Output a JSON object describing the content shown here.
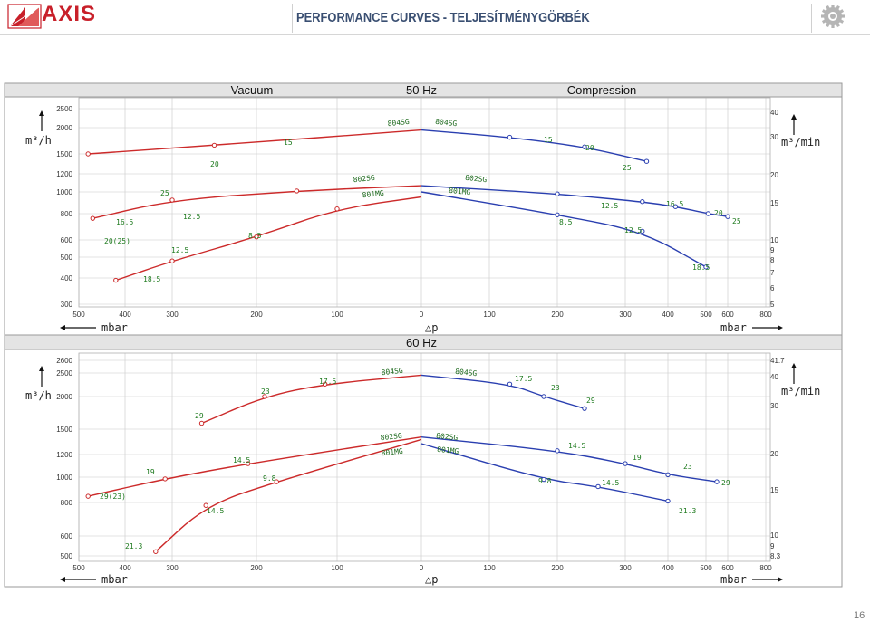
{
  "header": {
    "logo_text": "AXIS",
    "title": "PERFORMANCE CURVES - TELJESÍTMÉNYGÖRBÉK",
    "page_number": "16"
  },
  "colors": {
    "vacuum": "#cc2a2a",
    "compression": "#2a3fb0",
    "label_green": "#1e7a1e",
    "grid": "#c8c8c8",
    "axis_text": "#333333",
    "title_bar": "#e4e4e4"
  },
  "icons": {
    "logo": "axis-logo-icon",
    "gear": "gear-icon"
  },
  "chart_data": [
    {
      "type": "line",
      "title": "50 Hz",
      "left_title": "Vacuum",
      "right_title": "Compression",
      "xlabel": "△p",
      "x_unit": "mbar",
      "y_unit_left": "m³/h",
      "y_unit_right": "m³/min",
      "x_ticks_vacuum": [
        500,
        400,
        300,
        200,
        100,
        0
      ],
      "x_ticks_compression": [
        100,
        200,
        300,
        400,
        500,
        600,
        800
      ],
      "y_ticks_left": [
        300,
        400,
        500,
        600,
        800,
        1000,
        1200,
        1500,
        2000,
        2500
      ],
      "y_ticks_right": [
        "5",
        "6",
        "7",
        "8",
        "9",
        "10",
        "15",
        "20",
        "30",
        "40"
      ],
      "series": [
        {
          "name": "804SG",
          "side": "vacuum",
          "points": [
            [
              0,
              1950
            ],
            [
              250,
              1650
            ],
            [
              480,
              1500
            ]
          ]
        },
        {
          "name": "802SG",
          "side": "vacuum",
          "points": [
            [
              0,
              1065
            ],
            [
              150,
              1010
            ],
            [
              300,
              920
            ],
            [
              470,
              760
            ]
          ]
        },
        {
          "name": "801MG",
          "side": "vacuum",
          "points": [
            [
              0,
              950
            ],
            [
              100,
              840
            ],
            [
              200,
              620
            ],
            [
              300,
              480
            ],
            [
              420,
              390
            ]
          ]
        },
        {
          "name": "804SG",
          "side": "compression",
          "points": [
            [
              0,
              1950
            ],
            [
              130,
              1800
            ],
            [
              240,
              1620
            ],
            [
              350,
              1380
            ]
          ]
        },
        {
          "name": "802SG",
          "side": "compression",
          "points": [
            [
              0,
              1065
            ],
            [
              200,
              980
            ],
            [
              340,
              905
            ],
            [
              420,
              860
            ],
            [
              510,
              800
            ],
            [
              600,
              775
            ]
          ]
        },
        {
          "name": "801MG",
          "side": "compression",
          "points": [
            [
              0,
              1000
            ],
            [
              200,
              790
            ],
            [
              340,
              660
            ],
            [
              500,
              450
            ]
          ]
        }
      ],
      "annotations": [
        {
          "text": "804SG",
          "series": "804SG",
          "side": "vacuum"
        },
        {
          "text": "15",
          "series": "804SG",
          "side": "vacuum"
        },
        {
          "text": "20",
          "series": "804SG",
          "side": "vacuum"
        },
        {
          "text": "802SG",
          "series": "802SG",
          "side": "vacuum"
        },
        {
          "text": "12.5",
          "series": "802SG",
          "side": "vacuum"
        },
        {
          "text": "25",
          "series": "802SG",
          "side": "vacuum"
        },
        {
          "text": "16.5",
          "series": "802SG",
          "side": "vacuum"
        },
        {
          "text": "801MG",
          "series": "801MG",
          "side": "vacuum"
        },
        {
          "text": "8.5",
          "series": "801MG",
          "side": "vacuum"
        },
        {
          "text": "12.5",
          "series": "801MG",
          "side": "vacuum"
        },
        {
          "text": "20(25)",
          "series": "801MG",
          "side": "vacuum"
        },
        {
          "text": "18.5",
          "series": "801MG",
          "side": "vacuum"
        },
        {
          "text": "804SG",
          "series": "804SG",
          "side": "compression"
        },
        {
          "text": "15",
          "series": "804SG",
          "side": "compression"
        },
        {
          "text": "20",
          "series": "804SG",
          "side": "compression"
        },
        {
          "text": "25",
          "series": "804SG",
          "side": "compression"
        },
        {
          "text": "802SG",
          "series": "802SG",
          "side": "compression"
        },
        {
          "text": "12.5",
          "series": "802SG",
          "side": "compression"
        },
        {
          "text": "16.5",
          "series": "802SG",
          "side": "compression"
        },
        {
          "text": "20",
          "series": "802SG",
          "side": "compression"
        },
        {
          "text": "25",
          "series": "802SG",
          "side": "compression"
        },
        {
          "text": "801MG",
          "series": "801MG",
          "side": "compression"
        },
        {
          "text": "8.5",
          "series": "801MG",
          "side": "compression"
        },
        {
          "text": "12.5",
          "series": "801MG",
          "side": "compression"
        },
        {
          "text": "18.5",
          "series": "801MG",
          "side": "compression"
        }
      ]
    },
    {
      "type": "line",
      "title": "60 Hz",
      "xlabel": "△p",
      "x_unit": "mbar",
      "y_unit_left": "m³/h",
      "y_unit_right": "m³/min",
      "x_ticks_vacuum": [
        500,
        400,
        300,
        200,
        100,
        0
      ],
      "x_ticks_compression": [
        100,
        200,
        300,
        400,
        500,
        600,
        800
      ],
      "y_ticks_left": [
        500,
        600,
        800,
        1000,
        1200,
        1500,
        2000,
        2500,
        2600
      ],
      "y_ticks_right": [
        "8.3",
        "9",
        "10",
        "15",
        "20",
        "30",
        "40",
        "41.7"
      ],
      "series": [
        {
          "name": "804SG",
          "side": "vacuum",
          "points": [
            [
              0,
              2450
            ],
            [
              115,
              2250
            ],
            [
              190,
              2000
            ],
            [
              265,
              1580
            ]
          ]
        },
        {
          "name": "802SG",
          "side": "vacuum",
          "points": [
            [
              0,
              1400
            ],
            [
              210,
              1115
            ],
            [
              315,
              985
            ],
            [
              480,
              845
            ]
          ]
        },
        {
          "name": "801MG",
          "side": "vacuum",
          "points": [
            [
              0,
              1370
            ],
            [
              175,
              960
            ],
            [
              260,
              780
            ],
            [
              335,
              520
            ]
          ]
        },
        {
          "name": "804SG",
          "side": "compression",
          "points": [
            [
              0,
              2450
            ],
            [
              130,
              2250
            ],
            [
              180,
              2000
            ],
            [
              240,
              1800
            ]
          ]
        },
        {
          "name": "802SG",
          "side": "compression",
          "points": [
            [
              0,
              1400
            ],
            [
              200,
              1240
            ],
            [
              300,
              1115
            ],
            [
              400,
              1020
            ],
            [
              550,
              960
            ]
          ]
        },
        {
          "name": "801MG",
          "side": "compression",
          "points": [
            [
              0,
              1320
            ],
            [
              180,
              980
            ],
            [
              260,
              920
            ],
            [
              400,
              810
            ]
          ]
        }
      ],
      "annotations": [
        {
          "text": "804SG",
          "series": "804SG",
          "side": "vacuum"
        },
        {
          "text": "17.5",
          "series": "804SG",
          "side": "vacuum"
        },
        {
          "text": "23",
          "series": "804SG",
          "side": "vacuum"
        },
        {
          "text": "29",
          "series": "804SG",
          "side": "vacuum"
        },
        {
          "text": "802SG",
          "series": "802SG",
          "side": "vacuum"
        },
        {
          "text": "14.5",
          "series": "802SG",
          "side": "vacuum"
        },
        {
          "text": "19",
          "series": "802SG",
          "side": "vacuum"
        },
        {
          "text": "29(23)",
          "series": "802SG",
          "side": "vacuum"
        },
        {
          "text": "801MG",
          "series": "801MG",
          "side": "vacuum"
        },
        {
          "text": "9.8",
          "series": "801MG",
          "side": "vacuum"
        },
        {
          "text": "14.5",
          "series": "801MG",
          "side": "vacuum"
        },
        {
          "text": "21.3",
          "series": "801MG",
          "side": "vacuum"
        },
        {
          "text": "804SG",
          "series": "804SG",
          "side": "compression"
        },
        {
          "text": "17.5",
          "series": "804SG",
          "side": "compression"
        },
        {
          "text": "23",
          "series": "804SG",
          "side": "compression"
        },
        {
          "text": "29",
          "series": "804SG",
          "side": "compression"
        },
        {
          "text": "802SG",
          "series": "802SG",
          "side": "compression"
        },
        {
          "text": "14.5",
          "series": "802SG",
          "side": "compression"
        },
        {
          "text": "19",
          "series": "802SG",
          "side": "compression"
        },
        {
          "text": "23",
          "series": "802SG",
          "side": "compression"
        },
        {
          "text": "29",
          "series": "802SG",
          "side": "compression"
        },
        {
          "text": "801MG",
          "series": "801MG",
          "side": "compression"
        },
        {
          "text": "9.8",
          "series": "801MG",
          "side": "compression"
        },
        {
          "text": "14.5",
          "series": "801MG",
          "side": "compression"
        },
        {
          "text": "21.3",
          "series": "801MG",
          "side": "compression"
        }
      ]
    }
  ]
}
